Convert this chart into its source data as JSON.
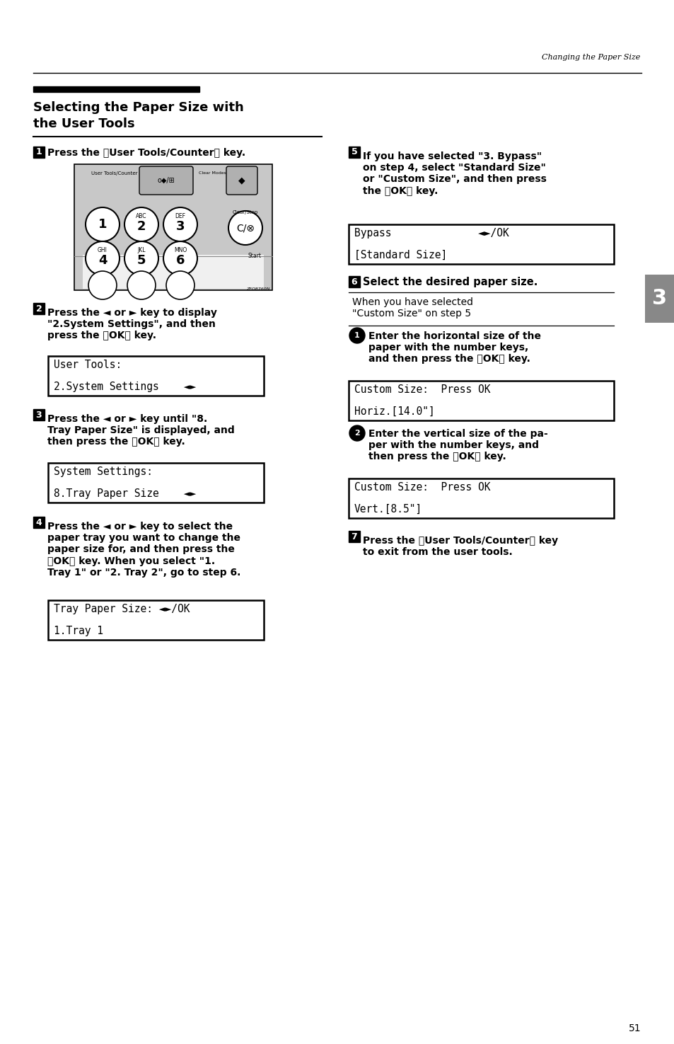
{
  "page_bg": "#ffffff",
  "header_text": "Changing the Paper Size",
  "page_number": "51",
  "tab_label": "3",
  "step1_text": "Press the 【User Tools/Counter】 key.",
  "step2_text": "Press the ◄ or ► key to display\n\"2.System Settings\", and then\npress the 【OK】 key.",
  "step3_text": "Press the ◄ or ► key until \"8.\nTray Paper Size\" is displayed, and\nthen press the 【OK】 key.",
  "step4_text": "Press the ◄ or ► key to select the\npaper tray you want to change the\npaper size for, and then press the\n【OK】 key. When you select \"1.\nTray 1\" or \"2. Tray 2\", go to step 6.",
  "step5_text": "If you have selected \"3. Bypass\"\non step 4, select \"Standard Size\"\nor \"Custom Size\", and then press\nthe 【OK】 key.",
  "step6_text": "Select the desired paper size.",
  "step6_sub_text": "When you have selected\n\"Custom Size\" on step 5",
  "step6_sub1_text": "Enter the horizontal size of the\npaper with the number keys,\nand then press the 【OK】 key.",
  "step6_sub2_text": "Enter the vertical size of the pa-\nper with the number keys, and\nthen press the 【OK】 key.",
  "step7_text": "Press the 【User Tools/Counter】 key\nto exit from the user tools.",
  "lcd1_l1": "User Tools:",
  "lcd1_l2": "2.System Settings    ◄►",
  "lcd2_l1": "System Settings:",
  "lcd2_l2": "8.Tray Paper Size    ◄►",
  "lcd3_l1": "Tray Paper Size: ◄►/OK",
  "lcd3_l2": "1.Tray 1",
  "lcd4_l1": "Bypass              ◄►/OK",
  "lcd4_l2": "[Standard Size]",
  "lcd5_l1": "Custom Size:  Press OK",
  "lcd5_l2": "Horiz.[14.0\"]",
  "lcd6_l1": "Custom Size:  Press OK",
  "lcd6_l2": "Vert.[8.5\"]"
}
